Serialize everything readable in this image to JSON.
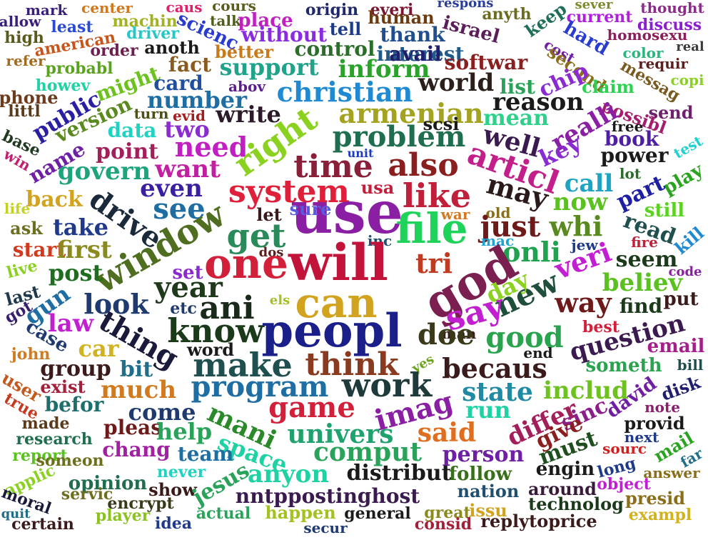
{
  "words": [
    {
      "text": "mark",
      "color": "#3a1f7a"
    },
    {
      "text": "center",
      "color": "#d1781e"
    },
    {
      "text": "caus",
      "color": "#e0206a"
    },
    {
      "text": "cours",
      "color": "#5c5c1c"
    },
    {
      "text": "origin",
      "color": "#1f2a6e"
    },
    {
      "text": "everi",
      "color": "#7a1530"
    },
    {
      "text": "respons",
      "color": "#2b3f9a"
    },
    {
      "text": "sever",
      "color": "#7a8c2b"
    },
    {
      "text": "thought",
      "color": "#8a2c8a"
    },
    {
      "text": "allow",
      "color": "#3a1f7a"
    },
    {
      "text": "least",
      "color": "#2a4bd7"
    },
    {
      "text": "machin",
      "color": "#a3b21f"
    },
    {
      "text": "talk",
      "color": "#4f5e1a"
    },
    {
      "text": "place",
      "color": "#c020c0"
    },
    {
      "text": "tell",
      "color": "#1b3a8a"
    },
    {
      "text": "human",
      "color": "#6e3a0f"
    },
    {
      "text": "anyth",
      "color": "#6b6b22"
    },
    {
      "text": "current",
      "color": "#b01fe0"
    },
    {
      "text": "discuss",
      "color": "#8a1fd0"
    },
    {
      "text": "high",
      "color": "#5a5a1a"
    },
    {
      "text": "american",
      "color": "#c9541a"
    },
    {
      "text": "driver",
      "color": "#28c7c7"
    },
    {
      "text": "scienc",
      "color": "#2a3bd0"
    },
    {
      "text": "without",
      "color": "#8a2be2"
    },
    {
      "text": "thank",
      "color": "#1f4f8f"
    },
    {
      "text": "israel",
      "color": "#5a1f5a"
    },
    {
      "text": "keep",
      "color": "#1f6e5a"
    },
    {
      "text": "hard",
      "color": "#2a3bd0"
    },
    {
      "text": "homosexu",
      "color": "#8a1f5a"
    },
    {
      "text": "real",
      "color": "#3a3a3a"
    },
    {
      "text": "refer",
      "color": "#a36b1f"
    },
    {
      "text": "order",
      "color": "#6e1f4f"
    },
    {
      "text": "anoth",
      "color": "#1a1a1a"
    },
    {
      "text": "better",
      "color": "#c97a1a"
    },
    {
      "text": "control",
      "color": "#2a6e2a"
    },
    {
      "text": "interest",
      "color": "#1f5a8a"
    },
    {
      "text": "cost",
      "color": "#6e1fa3"
    },
    {
      "text": "second",
      "color": "#8a6e1a"
    },
    {
      "text": "color",
      "color": "#2ab57a"
    },
    {
      "text": "requir",
      "color": "#5a1f1f"
    },
    {
      "text": "probabl",
      "color": "#5aa31f"
    },
    {
      "text": "fact",
      "color": "#8a5a1f"
    },
    {
      "text": "support",
      "color": "#1fa38a"
    },
    {
      "text": "inform",
      "color": "#2aa32a"
    },
    {
      "text": "avail",
      "color": "#1f1f6e"
    },
    {
      "text": "softwar",
      "color": "#8a1f1f"
    },
    {
      "text": "messag",
      "color": "#7a5a1f"
    },
    {
      "text": "copi",
      "color": "#8ad21f"
    },
    {
      "text": "howev",
      "color": "#1fd2a3"
    },
    {
      "text": "might",
      "color": "#6ec21f"
    },
    {
      "text": "card",
      "color": "#1f4fa3"
    },
    {
      "text": "abov",
      "color": "#5a1f8a"
    },
    {
      "text": "christian",
      "color": "#1f8ad2"
    },
    {
      "text": "world",
      "color": "#2a1f1a"
    },
    {
      "text": "list",
      "color": "#2aa35a"
    },
    {
      "text": "chip",
      "color": "#8a2bd2"
    },
    {
      "text": "claim",
      "color": "#2ad24f"
    },
    {
      "text": "phone",
      "color": "#6e3a1a"
    },
    {
      "text": "public",
      "color": "#2a1fa3"
    },
    {
      "text": "version",
      "color": "#5a8a1f"
    },
    {
      "text": "turn",
      "color": "#4f4f1a"
    },
    {
      "text": "number",
      "color": "#1f6ea3"
    },
    {
      "text": "reason",
      "color": "#1a1a1a"
    },
    {
      "text": "send",
      "color": "#6e1f6e"
    },
    {
      "text": "littl",
      "color": "#5a3a1a"
    },
    {
      "text": "evid",
      "color": "#a31f1f"
    },
    {
      "text": "write",
      "color": "#2a1a2a"
    },
    {
      "text": "armenian",
      "color": "#a3a31f"
    },
    {
      "text": "mean",
      "color": "#2ad28a"
    },
    {
      "text": "possibl",
      "color": "#a31f6e"
    },
    {
      "text": "base",
      "color": "#1f3a1f"
    },
    {
      "text": "data",
      "color": "#1fd2c2"
    },
    {
      "text": "two",
      "color": "#8a2bd2"
    },
    {
      "text": "scsi",
      "color": "#1a1a1a"
    },
    {
      "text": "realli",
      "color": "#8a1fa3"
    },
    {
      "text": "free",
      "color": "#1a1a1a"
    },
    {
      "text": "test",
      "color": "#1fd2d2"
    },
    {
      "text": "win",
      "color": "#c21f6e"
    },
    {
      "text": "name",
      "color": "#6e1fa3"
    },
    {
      "text": "point",
      "color": "#a31f5a"
    },
    {
      "text": "need",
      "color": "#c21fc2"
    },
    {
      "text": "right",
      "color": "#8ad21f"
    },
    {
      "text": "problem",
      "color": "#1f6e4f"
    },
    {
      "text": "well",
      "color": "#3a1a4f"
    },
    {
      "text": "key",
      "color": "#8a2bd2"
    },
    {
      "text": "book",
      "color": "#4f1fa3"
    },
    {
      "text": "power",
      "color": "#1a1a1a"
    },
    {
      "text": "play",
      "color": "#2aa31f"
    },
    {
      "text": "govern",
      "color": "#1fa37a"
    },
    {
      "text": "want",
      "color": "#c21fa3"
    },
    {
      "text": "time",
      "color": "#8a1f3a"
    },
    {
      "text": "also",
      "color": "#8a1f1f"
    },
    {
      "text": "articl",
      "color": "#c21f8a"
    },
    {
      "text": "unit",
      "color": "#1f3ac2"
    },
    {
      "text": "call",
      "color": "#1fa3c2"
    },
    {
      "text": "lot",
      "color": "#2a6e2a"
    },
    {
      "text": "even",
      "color": "#3a1fa3"
    },
    {
      "text": "system",
      "color": "#e01f3a"
    },
    {
      "text": "like",
      "color": "#c21f3a"
    },
    {
      "text": "may",
      "color": "#2a1a1a"
    },
    {
      "text": "part",
      "color": "#1f1fa3"
    },
    {
      "text": "back",
      "color": "#d2a31f"
    },
    {
      "text": "drive",
      "color": "#1a2a3a"
    },
    {
      "text": "see",
      "color": "#1f6ea3"
    },
    {
      "text": "usa",
      "color": "#c21f3a"
    },
    {
      "text": "now",
      "color": "#5ac21f"
    },
    {
      "text": "life",
      "color": "#c2d21f"
    },
    {
      "text": "use",
      "color": "#8a1fa3"
    },
    {
      "text": "sure",
      "color": "#5a5ae0"
    },
    {
      "text": "war",
      "color": "#d27a1f"
    },
    {
      "text": "old",
      "color": "#8a6e1a"
    },
    {
      "text": "still",
      "color": "#5ad21f"
    },
    {
      "text": "ask",
      "color": "#6e6e1f"
    },
    {
      "text": "take",
      "color": "#1f3a8a"
    },
    {
      "text": "let",
      "color": "#3a1a1a"
    },
    {
      "text": "get",
      "color": "#2a8a5a"
    },
    {
      "text": "file",
      "color": "#1fd25a"
    },
    {
      "text": "just",
      "color": "#6e1a1a"
    },
    {
      "text": "whi",
      "color": "#5a8a1f"
    },
    {
      "text": "read",
      "color": "#1f4f4f"
    },
    {
      "text": "kill",
      "color": "#1f8ad2"
    },
    {
      "text": "start",
      "color": "#d23a1f"
    },
    {
      "text": "window",
      "color": "#4f6e1f"
    },
    {
      "text": "inc",
      "color": "#1f4f6e"
    },
    {
      "text": "mac",
      "color": "#1fa3d2"
    },
    {
      "text": "jew",
      "color": "#1f3a8a"
    },
    {
      "text": "fire",
      "color": "#c21f3a"
    },
    {
      "text": "first",
      "color": "#8a8a1f"
    },
    {
      "text": "dos",
      "color": "#5a1f1f"
    },
    {
      "text": "onli",
      "color": "#1fa34f"
    },
    {
      "text": "veri",
      "color": "#c21fd2"
    },
    {
      "text": "seem",
      "color": "#1a3a1a"
    },
    {
      "text": "live",
      "color": "#8ad21f"
    },
    {
      "text": "post",
      "color": "#1f6e1f"
    },
    {
      "text": "one",
      "color": "#d21f3a"
    },
    {
      "text": "will",
      "color": "#c2133a"
    },
    {
      "text": "tri",
      "color": "#c23a1f"
    },
    {
      "text": "god",
      "color": "#7a1f4f"
    },
    {
      "text": "code",
      "color": "#8a1fa3"
    },
    {
      "text": "set",
      "color": "#8a2bd2"
    },
    {
      "text": "new",
      "color": "#1f4f3a"
    },
    {
      "text": "believ",
      "color": "#5ac21f"
    },
    {
      "text": "last",
      "color": "#1f3a4f"
    },
    {
      "text": "year",
      "color": "#1f3a1a"
    },
    {
      "text": "day",
      "color": "#8ad21f"
    },
    {
      "text": "put",
      "color": "#3a1a1a"
    },
    {
      "text": "gun",
      "color": "#1f6ea3"
    },
    {
      "text": "look",
      "color": "#1f3a6e"
    },
    {
      "text": "ani",
      "color": "#1a2a1a"
    },
    {
      "text": "els",
      "color": "#a3c21f"
    },
    {
      "text": "can",
      "color": "#d2a31f"
    },
    {
      "text": "way",
      "color": "#6e1a1a"
    },
    {
      "text": "find",
      "color": "#1a3a1a"
    },
    {
      "text": "got",
      "color": "#3a1f6e"
    },
    {
      "text": "etc",
      "color": "#1f3a6e"
    },
    {
      "text": "say",
      "color": "#c21fd2"
    },
    {
      "text": "best",
      "color": "#d21f3a"
    },
    {
      "text": "law",
      "color": "#c21fd2"
    },
    {
      "text": "thing",
      "color": "#1a1a3a"
    },
    {
      "text": "know",
      "color": "#1a3a1a"
    },
    {
      "text": "peopl",
      "color": "#1a1f8a"
    },
    {
      "text": "man",
      "color": "#3a1a1a"
    },
    {
      "text": "good",
      "color": "#2aa34f"
    },
    {
      "text": "question",
      "color": "#3a1a4f"
    },
    {
      "text": "case",
      "color": "#1f3a6e"
    },
    {
      "text": "doe",
      "color": "#3a3a1a"
    },
    {
      "text": "email",
      "color": "#a31f8a"
    },
    {
      "text": "car",
      "color": "#d2b21f"
    },
    {
      "text": "word",
      "color": "#1a1a1a"
    },
    {
      "text": "end",
      "color": "#1a1a1a"
    },
    {
      "text": "john",
      "color": "#d27a1f"
    },
    {
      "text": "make",
      "color": "#1f4f4f"
    },
    {
      "text": "think",
      "color": "#8a3a1f"
    },
    {
      "text": "becaus",
      "color": "#3a1a1a"
    },
    {
      "text": "yes",
      "color": "#6ea31f"
    },
    {
      "text": "someth",
      "color": "#2aa34f"
    },
    {
      "text": "bill",
      "color": "#1f4f4f"
    },
    {
      "text": "group",
      "color": "#3a1a1a"
    },
    {
      "text": "bit",
      "color": "#1f6e8a"
    },
    {
      "text": "user",
      "color": "#c25a1f"
    },
    {
      "text": "disk",
      "color": "#1f1f6e"
    },
    {
      "text": "exist",
      "color": "#a31f3a"
    },
    {
      "text": "much",
      "color": "#d27a1f"
    },
    {
      "text": "program",
      "color": "#1f6ea3"
    },
    {
      "text": "work",
      "color": "#1f3a3a"
    },
    {
      "text": "state",
      "color": "#1f8aa3"
    },
    {
      "text": "includ",
      "color": "#6ec21f"
    },
    {
      "text": "david",
      "color": "#6e1fa3"
    },
    {
      "text": "true",
      "color": "#c23a1f"
    },
    {
      "text": "befor",
      "color": "#1f6e6e"
    },
    {
      "text": "come",
      "color": "#1f3a6e"
    },
    {
      "text": "game",
      "color": "#d21f3a"
    },
    {
      "text": "imag",
      "color": "#8a1fa3"
    },
    {
      "text": "run",
      "color": "#1fd2a3"
    },
    {
      "text": "note",
      "color": "#8a1f6e"
    },
    {
      "text": "made",
      "color": "#5a3a1a"
    },
    {
      "text": "mani",
      "color": "#2a8a2a"
    },
    {
      "text": "differ",
      "color": "#a31f5a"
    },
    {
      "text": "sinc",
      "color": "#8a1f8a"
    },
    {
      "text": "provid",
      "color": "#1a1a1a"
    },
    {
      "text": "research",
      "color": "#1f6e4f"
    },
    {
      "text": "pleas",
      "color": "#6e1a1a"
    },
    {
      "text": "help",
      "color": "#2aa35a"
    },
    {
      "text": "univers",
      "color": "#1fa36e"
    },
    {
      "text": "said",
      "color": "#e06e1f"
    },
    {
      "text": "give",
      "color": "#8a1f1f"
    },
    {
      "text": "next",
      "color": "#1f3a8a"
    },
    {
      "text": "chang",
      "color": "#a31fa3"
    },
    {
      "text": "space",
      "color": "#1fd2a3"
    },
    {
      "text": "team",
      "color": "#1f6ea3"
    },
    {
      "text": "comput",
      "color": "#2aa35a"
    },
    {
      "text": "person",
      "color": "#6e1fa3"
    },
    {
      "text": "must",
      "color": "#1f4f1f"
    },
    {
      "text": "sourc",
      "color": "#d21f1f"
    },
    {
      "text": "mail",
      "color": "#2aa31f"
    },
    {
      "text": "far",
      "color": "#1f6e8a"
    },
    {
      "text": "report",
      "color": "#5ac21f"
    },
    {
      "text": "someon",
      "color": "#6e6e1f"
    },
    {
      "text": "anyon",
      "color": "#1fd2a3"
    },
    {
      "text": "distribut",
      "color": "#1a1a1a"
    },
    {
      "text": "follow",
      "color": "#3a6e1a"
    },
    {
      "text": "engin",
      "color": "#1a1a1a"
    },
    {
      "text": "long",
      "color": "#1f3a8a"
    },
    {
      "text": "answer",
      "color": "#8a6e1a"
    },
    {
      "text": "applic",
      "color": "#8ad21f"
    },
    {
      "text": "opinion",
      "color": "#1f6e4f"
    },
    {
      "text": "never",
      "color": "#1fd2c2"
    },
    {
      "text": "show",
      "color": "#3a1a1a"
    },
    {
      "text": "jesus",
      "color": "#2aa35a"
    },
    {
      "text": "nation",
      "color": "#1f4f6e"
    },
    {
      "text": "around",
      "color": "#3a1a3a"
    },
    {
      "text": "object",
      "color": "#c21fd2"
    },
    {
      "text": "presid",
      "color": "#8a6e1a"
    },
    {
      "text": "moral",
      "color": "#1a1a3a"
    },
    {
      "text": "servic",
      "color": "#6e6e1f"
    },
    {
      "text": "encrypt",
      "color": "#3a3a1a"
    },
    {
      "text": "nntppostinghost",
      "color": "#3a1a4f"
    },
    {
      "text": "technolog",
      "color": "#1a3a1a"
    },
    {
      "text": "quit",
      "color": "#1f6e8a"
    },
    {
      "text": "player",
      "color": "#8ac21f"
    },
    {
      "text": "actual",
      "color": "#2aa35a"
    },
    {
      "text": "happen",
      "color": "#a3c21f"
    },
    {
      "text": "general",
      "color": "#1a1a1a"
    },
    {
      "text": "great",
      "color": "#8a8a1f"
    },
    {
      "text": "issu",
      "color": "#d2a31f"
    },
    {
      "text": "exampl",
      "color": "#d2b21f"
    },
    {
      "text": "certain",
      "color": "#3a1a1a"
    },
    {
      "text": "idea",
      "color": "#1f3a8a"
    },
    {
      "text": "secur",
      "color": "#1f3a6e"
    },
    {
      "text": "consid",
      "color": "#a31f3a"
    },
    {
      "text": "replytoprice",
      "color": "#3a1a1a"
    }
  ]
}
